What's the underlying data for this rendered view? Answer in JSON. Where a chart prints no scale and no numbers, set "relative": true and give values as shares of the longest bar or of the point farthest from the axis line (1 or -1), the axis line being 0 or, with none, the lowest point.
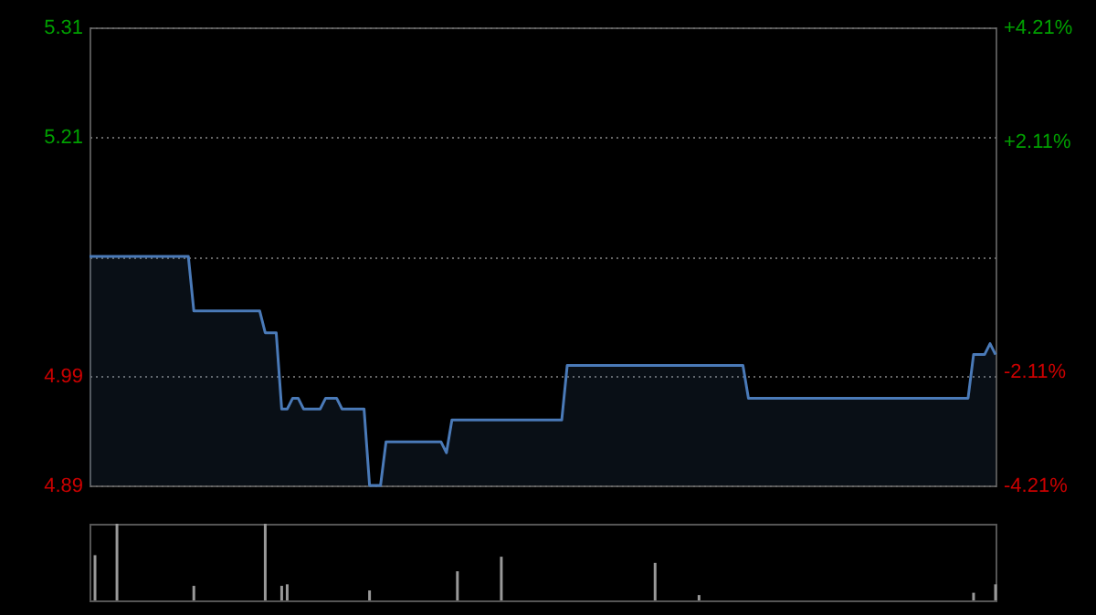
{
  "chart_data": [
    {
      "type": "area",
      "categories": [
        null,
        null,
        null,
        null,
        null,
        null,
        null,
        null,
        null,
        null,
        null,
        null,
        null,
        null,
        null,
        null,
        null,
        null,
        null,
        null,
        null,
        null,
        null,
        null,
        null,
        null,
        null,
        null,
        null,
        null,
        null,
        null,
        null,
        null,
        null,
        null,
        null,
        null,
        null,
        null,
        null,
        null,
        null,
        null,
        null,
        null,
        null,
        null,
        null,
        null,
        null,
        null,
        null,
        null,
        null,
        null,
        null,
        null,
        null,
        null,
        null,
        null,
        null,
        null,
        null,
        null,
        null,
        null,
        null,
        null,
        null,
        null,
        null,
        null,
        null,
        null,
        null,
        null,
        null,
        null,
        null,
        null,
        null,
        null,
        null,
        null,
        null,
        null,
        null,
        null,
        null,
        null,
        null,
        null,
        null,
        null,
        null,
        null,
        null,
        null,
        null,
        null,
        null,
        null,
        null,
        null,
        null,
        null,
        null,
        null,
        null,
        null,
        null,
        null,
        null,
        null,
        null,
        null,
        null,
        null,
        null,
        null,
        null,
        null,
        null,
        null,
        null,
        null,
        null,
        null,
        null,
        null,
        null,
        null,
        null,
        null,
        null,
        null,
        null,
        null,
        null,
        null,
        null,
        null,
        null,
        null,
        null,
        null,
        null,
        null,
        null,
        null,
        null,
        null,
        null,
        null,
        null,
        null,
        null,
        null,
        null,
        null,
        null,
        null,
        null,
        null
      ],
      "series": [
        {
          "color": "#4a7ab8",
          "values": [
            5.1,
            5.1,
            5.1,
            5.1,
            5.1,
            5.1,
            5.1,
            5.1,
            5.1,
            5.1,
            5.1,
            5.1,
            5.1,
            5.1,
            5.1,
            5.1,
            5.1,
            5.1,
            5.1,
            5.05,
            5.05,
            5.05,
            5.05,
            5.05,
            5.05,
            5.05,
            5.05,
            5.05,
            5.05,
            5.05,
            5.05,
            5.05,
            5.03,
            5.03,
            5.03,
            4.96,
            4.96,
            4.97,
            4.97,
            4.96,
            4.96,
            4.96,
            4.96,
            4.97,
            4.97,
            4.97,
            4.96,
            4.96,
            4.96,
            4.96,
            4.96,
            4.89,
            4.89,
            4.89,
            4.93,
            4.93,
            4.93,
            4.93,
            4.93,
            4.93,
            4.93,
            4.93,
            4.93,
            4.93,
            4.93,
            4.92,
            4.95,
            4.95,
            4.95,
            4.95,
            4.95,
            4.95,
            4.95,
            4.95,
            4.95,
            4.95,
            4.95,
            4.95,
            4.95,
            4.95,
            4.95,
            4.95,
            4.95,
            4.95,
            4.95,
            4.95,
            4.95,
            5.0,
            5.0,
            5.0,
            5.0,
            5.0,
            5.0,
            5.0,
            5.0,
            5.0,
            5.0,
            5.0,
            5.0,
            5.0,
            5.0,
            5.0,
            5.0,
            5.0,
            5.0,
            5.0,
            5.0,
            5.0,
            5.0,
            5.0,
            5.0,
            5.0,
            5.0,
            5.0,
            5.0,
            5.0,
            5.0,
            5.0,
            5.0,
            5.0,
            4.97,
            4.97,
            4.97,
            4.97,
            4.97,
            4.97,
            4.97,
            4.97,
            4.97,
            4.97,
            4.97,
            4.97,
            4.97,
            4.97,
            4.97,
            4.97,
            4.97,
            4.97,
            4.97,
            4.97,
            4.97,
            4.97,
            4.97,
            4.97,
            4.97,
            4.97,
            4.97,
            4.97,
            4.97,
            4.97,
            4.97,
            4.97,
            4.97,
            4.97,
            4.97,
            4.97,
            4.97,
            4.97,
            4.97,
            4.97,
            4.97,
            5.01,
            5.01,
            5.01,
            5.02,
            5.01
          ]
        }
      ],
      "ylim": [
        4.89,
        5.31
      ],
      "yticks": [
        4.89,
        4.99,
        {
          "value": 5.1,
          "label": null
        },
        5.21,
        5.31
      ],
      "y2lim": [
        -4.21,
        4.21
      ],
      "y2ticks": [
        {
          "value": -4.21,
          "label": "-4.21%"
        },
        {
          "value": -2.11,
          "label": "-2.11%"
        },
        {
          "value": 2.11,
          "label": "+2.11%"
        },
        {
          "value": 4.21,
          "label": "+4.21%"
        }
      ],
      "grid": "y",
      "tick_labels": "y"
    },
    {
      "type": "bar",
      "relative": true,
      "categories": [
        null,
        null,
        null,
        null,
        null,
        null,
        null,
        null,
        null,
        null,
        null,
        null,
        null,
        null,
        null,
        null,
        null,
        null,
        null,
        null,
        null,
        null,
        null,
        null,
        null,
        null,
        null,
        null,
        null,
        null,
        null,
        null,
        null,
        null,
        null,
        null,
        null,
        null,
        null,
        null,
        null,
        null,
        null,
        null,
        null,
        null,
        null,
        null,
        null,
        null,
        null,
        null,
        null,
        null,
        null,
        null,
        null,
        null,
        null,
        null,
        null,
        null,
        null,
        null,
        null,
        null,
        null,
        null,
        null,
        null,
        null,
        null,
        null,
        null,
        null,
        null,
        null,
        null,
        null,
        null,
        null,
        null,
        null,
        null,
        null,
        null,
        null,
        null,
        null,
        null,
        null,
        null,
        null,
        null,
        null,
        null,
        null,
        null,
        null,
        null,
        null,
        null,
        null,
        null,
        null,
        null,
        null,
        null,
        null,
        null,
        null,
        null,
        null,
        null,
        null,
        null,
        null,
        null,
        null,
        null,
        null,
        null,
        null,
        null,
        null,
        null,
        null,
        null,
        null,
        null,
        null,
        null,
        null,
        null,
        null,
        null,
        null,
        null,
        null,
        null,
        null,
        null,
        null,
        null,
        null,
        null,
        null,
        null,
        null,
        null,
        null,
        null,
        null,
        null,
        null,
        null,
        null,
        null,
        null,
        null,
        null,
        null,
        null,
        null,
        null,
        null
      ],
      "series": [
        {
          "color": "#999999",
          "values": [
            0,
            0.59,
            0,
            0,
            0,
            1,
            0,
            0,
            0,
            0,
            0,
            0,
            0,
            0,
            0,
            0,
            0,
            0,
            0,
            0.19,
            0,
            0,
            0,
            0,
            0,
            0,
            0,
            0,
            0,
            0,
            0,
            0,
            1,
            0,
            0,
            0.19,
            0.21,
            0,
            0,
            0,
            0,
            0,
            0,
            0,
            0,
            0,
            0,
            0,
            0,
            0,
            0,
            0.13,
            0,
            0,
            0,
            0,
            0,
            0,
            0,
            0,
            0,
            0,
            0,
            0,
            0,
            0,
            0,
            0.38,
            0,
            0,
            0,
            0,
            0,
            0,
            0,
            0.57,
            0,
            0,
            0,
            0,
            0,
            0,
            0,
            0,
            0,
            0,
            0,
            0,
            0,
            0,
            0,
            0,
            0,
            0,
            0,
            0,
            0,
            0,
            0,
            0,
            0,
            0,
            0,
            0.49,
            0,
            0,
            0,
            0,
            0,
            0,
            0,
            0.07,
            0,
            0,
            0,
            0,
            0,
            0,
            0,
            0,
            0,
            0,
            0,
            0,
            0,
            0,
            0,
            0,
            0,
            0,
            0,
            0,
            0,
            0,
            0,
            0,
            0,
            0,
            0,
            0,
            0,
            0,
            0,
            0,
            0,
            0,
            0,
            0,
            0,
            0,
            0,
            0,
            0,
            0,
            0,
            0,
            0,
            0,
            0,
            0,
            0,
            0.1,
            0,
            0,
            0,
            0.21
          ]
        }
      ],
      "tick_labels": false
    }
  ]
}
